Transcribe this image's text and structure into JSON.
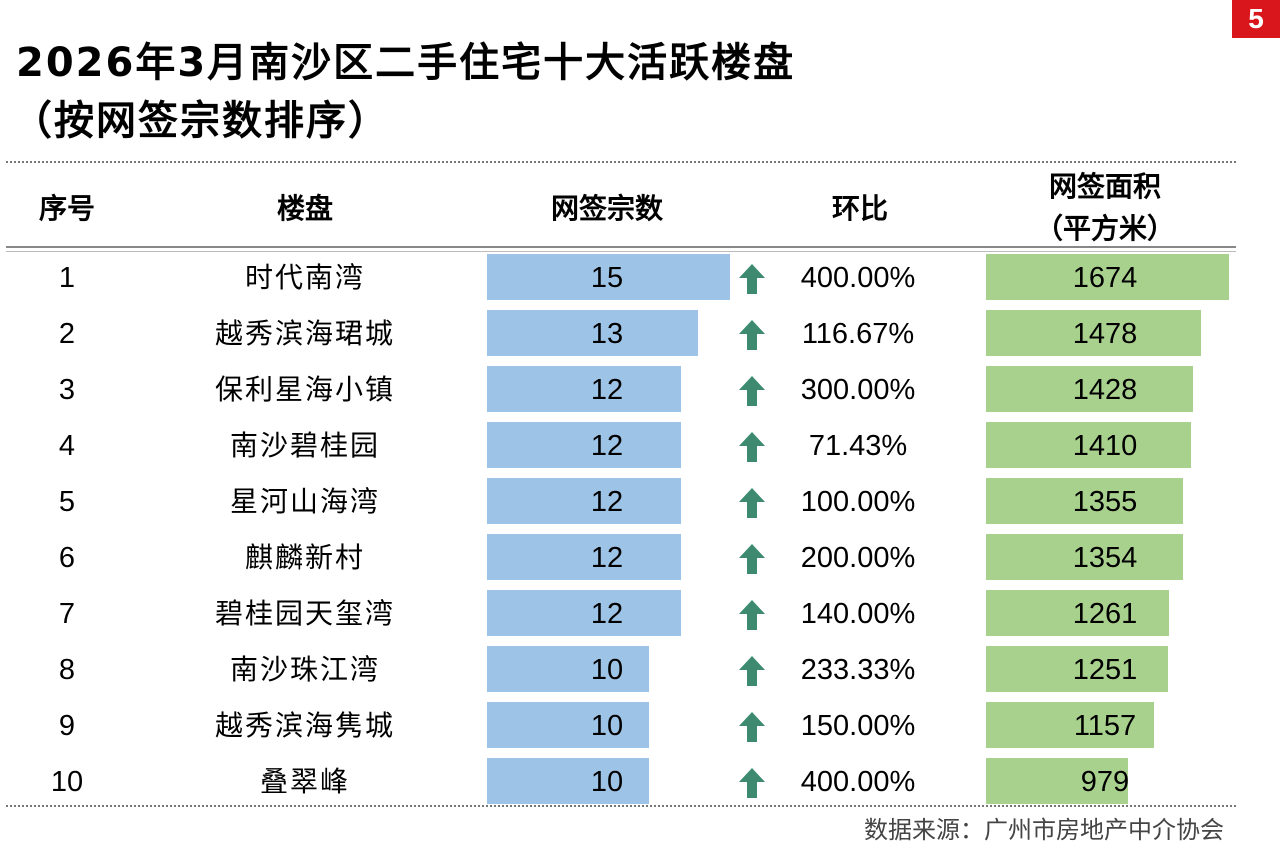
{
  "page_number": "5",
  "title_line1": "2026年3月南沙区二手住宅十大活跃楼盘",
  "title_line2": "（按网签宗数排序）",
  "source": "数据来源：广州市房地产中介协会",
  "colors": {
    "count_bar": "#9dc3e6",
    "area_bar": "#a9d18e",
    "up_arrow": "#3e8a70",
    "badge": "#d9161c"
  },
  "chart_data": {
    "type": "table",
    "headers": [
      "序号",
      "楼盘",
      "网签宗数",
      "环比",
      "网签面积",
      "（平方米）"
    ],
    "rows": [
      {
        "rank": "1",
        "name": "时代南湾",
        "count": 15,
        "mom": "400.00%",
        "trend": "up",
        "area": 1674
      },
      {
        "rank": "2",
        "name": "越秀滨海珺城",
        "count": 13,
        "mom": "116.67%",
        "trend": "up",
        "area": 1478
      },
      {
        "rank": "3",
        "name": "保利星海小镇",
        "count": 12,
        "mom": "300.00%",
        "trend": "up",
        "area": 1428
      },
      {
        "rank": "4",
        "name": "南沙碧桂园",
        "count": 12,
        "mom": "71.43%",
        "trend": "up",
        "area": 1410
      },
      {
        "rank": "5",
        "name": "星河山海湾",
        "count": 12,
        "mom": "100.00%",
        "trend": "up",
        "area": 1355
      },
      {
        "rank": "6",
        "name": "麒麟新村",
        "count": 12,
        "mom": "200.00%",
        "trend": "up",
        "area": 1354
      },
      {
        "rank": "7",
        "name": "碧桂园天玺湾",
        "count": 12,
        "mom": "140.00%",
        "trend": "up",
        "area": 1261
      },
      {
        "rank": "8",
        "name": "南沙珠江湾",
        "count": 10,
        "mom": "233.33%",
        "trend": "up",
        "area": 1251
      },
      {
        "rank": "9",
        "name": "越秀滨海隽城",
        "count": 10,
        "mom": "150.00%",
        "trend": "up",
        "area": 1157
      },
      {
        "rank": "10",
        "name": "叠翠峰",
        "count": 10,
        "mom": "400.00%",
        "trend": "up",
        "area": 979
      }
    ]
  }
}
